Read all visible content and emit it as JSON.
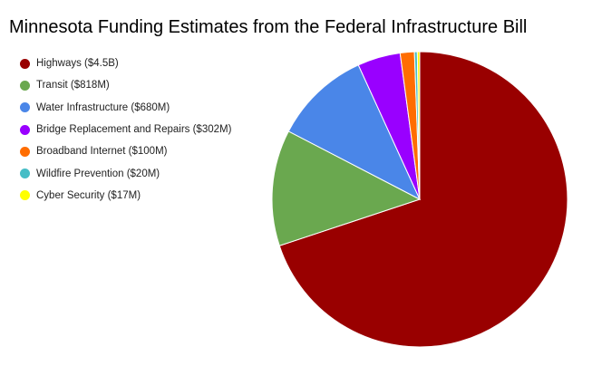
{
  "chart_data": {
    "type": "pie",
    "title": "Minnesota Funding Estimates from the Federal Infrastructure Bill",
    "unit": "$M",
    "legend_position": "left",
    "categories": [
      "Highways ($4.5B)",
      "Transit ($818M)",
      "Water Infrastructure ($680M)",
      "Bridge Replacement and Repairs ($302M)",
      "Broadband Internet ($100M)",
      "Wildfire Prevention ($20M)",
      "Cyber Security ($17M)"
    ],
    "values": [
      4500,
      818,
      680,
      302,
      100,
      20,
      17
    ],
    "colors": [
      "#990000",
      "#6aa84f",
      "#4a86e8",
      "#9900ff",
      "#ff6d01",
      "#46bdc6",
      "#ffff00"
    ]
  }
}
